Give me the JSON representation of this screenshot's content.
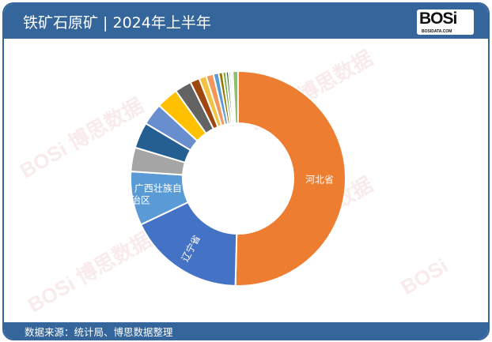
{
  "header": {
    "title": "铁矿石原矿 | 2024年上半年",
    "logo_text": "BOSi",
    "logo_subtext": "BOSIDATA.COM"
  },
  "footer": {
    "source": "数据来源：统计局、博思数据整理"
  },
  "watermark": {
    "text": "BOSi 博思数据 BosiData Research"
  },
  "chart_data": {
    "type": "pie",
    "donut": true,
    "title": "",
    "slices": [
      {
        "label": "河北省",
        "value": 50.3,
        "color": "#ED7D31"
      },
      {
        "label": "辽宁省",
        "value": 17.5,
        "color": "#4472C4"
      },
      {
        "label": "广西壮族自治区",
        "value": 8.1,
        "color": "#5B9BD5"
      },
      {
        "label": "",
        "value": 3.6,
        "color": "#A5A5A5"
      },
      {
        "label": "",
        "value": 3.9,
        "color": "#255E91"
      },
      {
        "label": "",
        "value": 3.3,
        "color": "#698ED0"
      },
      {
        "label": "",
        "value": 3.3,
        "color": "#FFC000"
      },
      {
        "label": "",
        "value": 2.5,
        "color": "#636363"
      },
      {
        "label": "",
        "value": 1.4,
        "color": "#9E480E"
      },
      {
        "label": "",
        "value": 1.1,
        "color": "#F4C242"
      },
      {
        "label": "",
        "value": 1.1,
        "color": "#F1975A"
      },
      {
        "label": "",
        "value": 0.8,
        "color": "#5B9BD5"
      },
      {
        "label": "",
        "value": 0.6,
        "color": "#997300"
      },
      {
        "label": "",
        "value": 0.5,
        "color": "#70AD47"
      },
      {
        "label": "",
        "value": 0.4,
        "color": "#43682B"
      },
      {
        "label": "",
        "value": 0.3,
        "color": "#A5A5A5"
      },
      {
        "label": "",
        "value": 0.3,
        "color": "#C9D9F0"
      },
      {
        "label": "",
        "value": 0.8,
        "color": "#8FC16C"
      }
    ]
  }
}
